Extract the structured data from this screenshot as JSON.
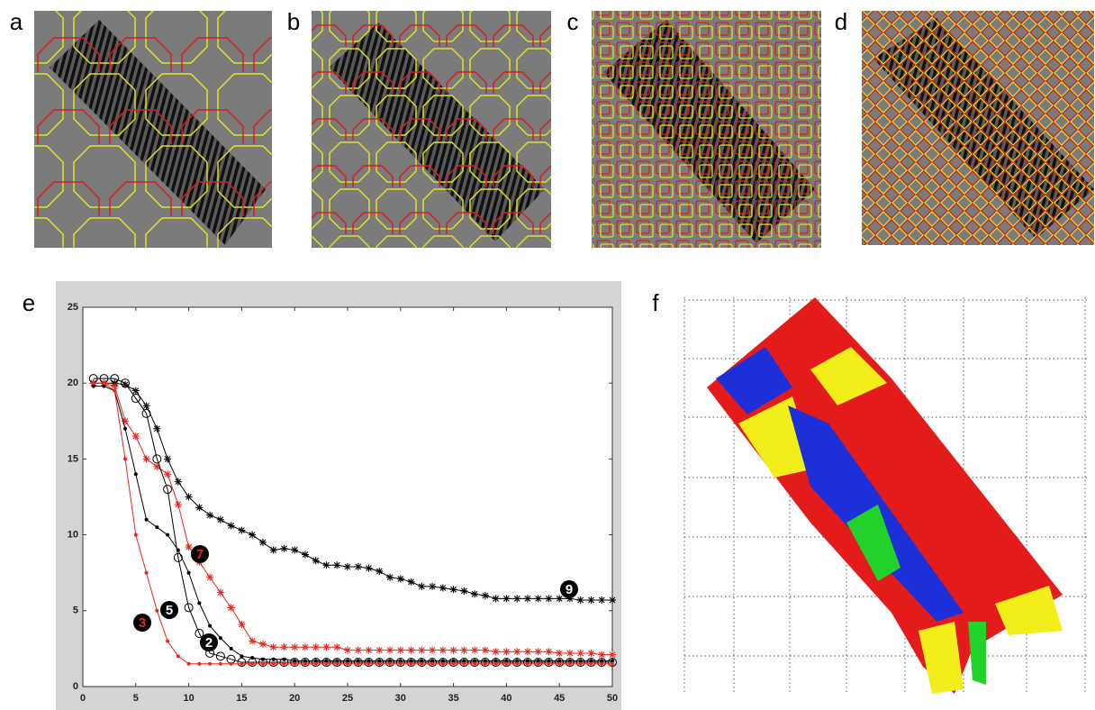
{
  "panel_labels": [
    "a",
    "b",
    "c",
    "d",
    "e",
    "f"
  ],
  "chart_data": {
    "type": "line",
    "x": [
      1,
      2,
      3,
      4,
      5,
      6,
      7,
      8,
      9,
      10,
      11,
      12,
      13,
      14,
      15,
      16,
      17,
      18,
      19,
      20,
      21,
      22,
      23,
      24,
      25,
      26,
      27,
      28,
      29,
      30,
      31,
      32,
      33,
      34,
      35,
      36,
      37,
      38,
      39,
      40,
      41,
      42,
      43,
      44,
      45,
      46,
      47,
      48,
      49,
      50
    ],
    "xlim": [
      0,
      50
    ],
    "xticks": [
      0,
      5,
      10,
      15,
      20,
      25,
      30,
      35,
      40,
      45,
      50
    ],
    "ylim": [
      0,
      25
    ],
    "yticks": [
      0,
      5,
      10,
      15,
      20,
      25
    ],
    "series": [
      {
        "name": "9",
        "color": "#000000",
        "marker": "asterisk",
        "values": [
          20,
          20,
          20,
          19.9,
          19.5,
          18.5,
          17,
          15,
          13.5,
          12.5,
          11.8,
          11.3,
          11,
          10.6,
          10.3,
          10,
          9.5,
          9,
          9.1,
          9,
          8.7,
          8.3,
          8,
          8,
          7.9,
          7.9,
          7.8,
          7.6,
          7.2,
          7.1,
          6.9,
          6.6,
          6.6,
          6.5,
          6.4,
          6.3,
          6.1,
          6,
          5.8,
          5.8,
          5.8,
          5.8,
          5.8,
          5.8,
          5.8,
          5.8,
          5.7,
          5.7,
          5.7,
          5.7
        ]
      },
      {
        "name": "7",
        "color": "#e8251f",
        "marker": "asterisk",
        "values": [
          20,
          20,
          19.8,
          17.5,
          16.5,
          15,
          14.5,
          14,
          12,
          9.2,
          8.2,
          7.2,
          6.2,
          5.2,
          4.1,
          3,
          2.8,
          2.6,
          2.6,
          2.6,
          2.6,
          2.6,
          2.6,
          2.6,
          2.4,
          2.4,
          2.4,
          2.4,
          2.4,
          2.4,
          2.4,
          2.4,
          2.4,
          2.4,
          2.4,
          2.4,
          2.4,
          2.4,
          2.3,
          2.3,
          2.3,
          2.3,
          2.3,
          2.3,
          2.2,
          2.2,
          2.2,
          2.2,
          2.1,
          2.1
        ]
      },
      {
        "name": "2",
        "color": "#000000",
        "marker": "dot",
        "values": [
          19.8,
          19.8,
          19.5,
          17,
          14,
          11,
          10.5,
          10,
          9,
          7.5,
          5.5,
          4,
          3.2,
          2.5,
          2,
          1.9,
          1.8,
          1.8,
          1.8,
          1.7,
          1.7,
          1.7,
          1.7,
          1.7,
          1.7,
          1.7,
          1.7,
          1.7,
          1.7,
          1.7,
          1.7,
          1.7,
          1.7,
          1.7,
          1.7,
          1.7,
          1.7,
          1.7,
          1.7,
          1.7,
          1.7,
          1.7,
          1.7,
          1.7,
          1.7,
          1.7,
          1.7,
          1.7,
          1.7,
          1.7
        ]
      },
      {
        "name": "5",
        "color": "#000000",
        "marker": "circle",
        "values": [
          20.3,
          20.3,
          20.3,
          20,
          19,
          18,
          15,
          13,
          8.5,
          5.2,
          3.5,
          2.2,
          2,
          1.8,
          1.6,
          1.6,
          1.6,
          1.6,
          1.6,
          1.6,
          1.6,
          1.6,
          1.6,
          1.6,
          1.6,
          1.6,
          1.6,
          1.6,
          1.6,
          1.6,
          1.6,
          1.6,
          1.6,
          1.6,
          1.6,
          1.6,
          1.6,
          1.6,
          1.6,
          1.6,
          1.6,
          1.6,
          1.6,
          1.6,
          1.6,
          1.6,
          1.6,
          1.6,
          1.6,
          1.6
        ]
      },
      {
        "name": "3",
        "color": "#e8251f",
        "marker": "dot",
        "values": [
          20,
          20,
          19.5,
          15,
          10,
          7.5,
          5,
          3,
          2,
          1.5,
          1.5,
          1.5,
          1.5,
          1.5,
          1.5,
          1.5,
          1.5,
          1.5,
          1.5,
          1.5,
          1.5,
          1.5,
          1.5,
          1.5,
          1.5,
          1.5,
          1.5,
          1.5,
          1.5,
          1.5,
          1.5,
          1.5,
          1.5,
          1.5,
          1.5,
          1.5,
          1.5,
          1.5,
          1.5,
          1.5,
          1.5,
          1.5,
          1.5,
          1.5,
          1.5,
          1.5,
          1.5,
          1.5,
          1.5,
          1.5
        ]
      }
    ]
  }
}
